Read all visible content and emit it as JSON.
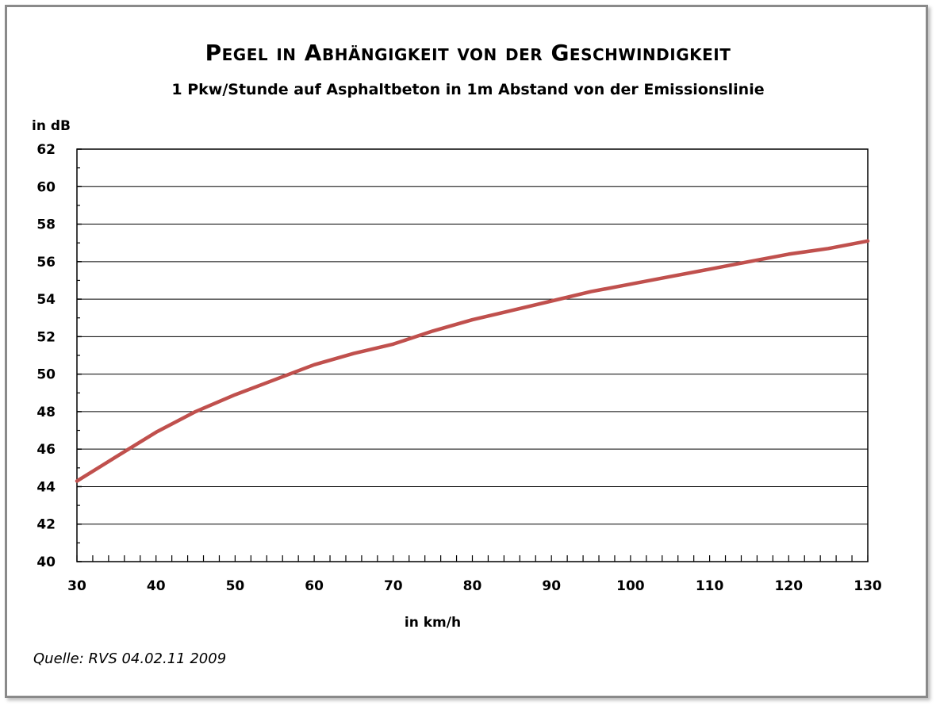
{
  "chart_data": {
    "type": "line",
    "title": "Pegel in Abhängigkeit von der Geschwindigkeit",
    "subtitle": "1 Pkw/Stunde auf Asphaltbeton in 1m Abstand von der Emissionslinie",
    "ylabel": "in dB",
    "xlabel": "in km/h",
    "source": "Quelle: RVS 04.02.11 2009",
    "xlim": [
      30,
      130
    ],
    "ylim": [
      40,
      62
    ],
    "x_ticks": [
      30,
      40,
      50,
      60,
      70,
      80,
      90,
      100,
      110,
      120,
      130
    ],
    "y_ticks": [
      40,
      42,
      44,
      46,
      48,
      50,
      52,
      54,
      56,
      58,
      60,
      62
    ],
    "grid": "horizontal",
    "series": [
      {
        "color": "#c0504d",
        "x": [
          30,
          35,
          40,
          45,
          50,
          55,
          60,
          65,
          70,
          75,
          80,
          85,
          90,
          95,
          100,
          105,
          110,
          115,
          120,
          125,
          130
        ],
        "y": [
          44.3,
          45.6,
          46.9,
          48.0,
          48.9,
          49.7,
          50.5,
          51.1,
          51.6,
          52.3,
          52.9,
          53.4,
          53.9,
          54.4,
          54.8,
          55.2,
          55.6,
          56.0,
          56.4,
          56.7,
          57.1
        ]
      }
    ]
  }
}
